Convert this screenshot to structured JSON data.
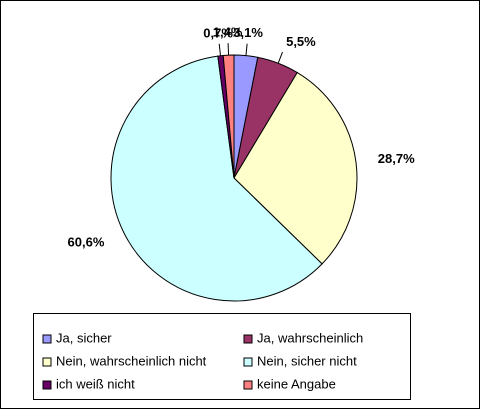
{
  "chart_data": {
    "type": "pie",
    "categories": [
      "Ja, sicher",
      "Ja, wahrscheinlich",
      "Nein, wahrscheinlich nicht",
      "Nein, sicher nicht",
      "ich weiß nicht",
      "keine Angabe"
    ],
    "values": [
      3.1,
      5.5,
      28.7,
      60.6,
      0.7,
      1.4
    ],
    "value_labels": [
      "3,1%",
      "5,5%",
      "28,7%",
      "60,6%",
      "0,7%",
      "1,4%"
    ],
    "colors": [
      "#9999ff",
      "#993366",
      "#ffffcc",
      "#ccffff",
      "#660066",
      "#ff8080"
    ],
    "legend": "bottom"
  }
}
